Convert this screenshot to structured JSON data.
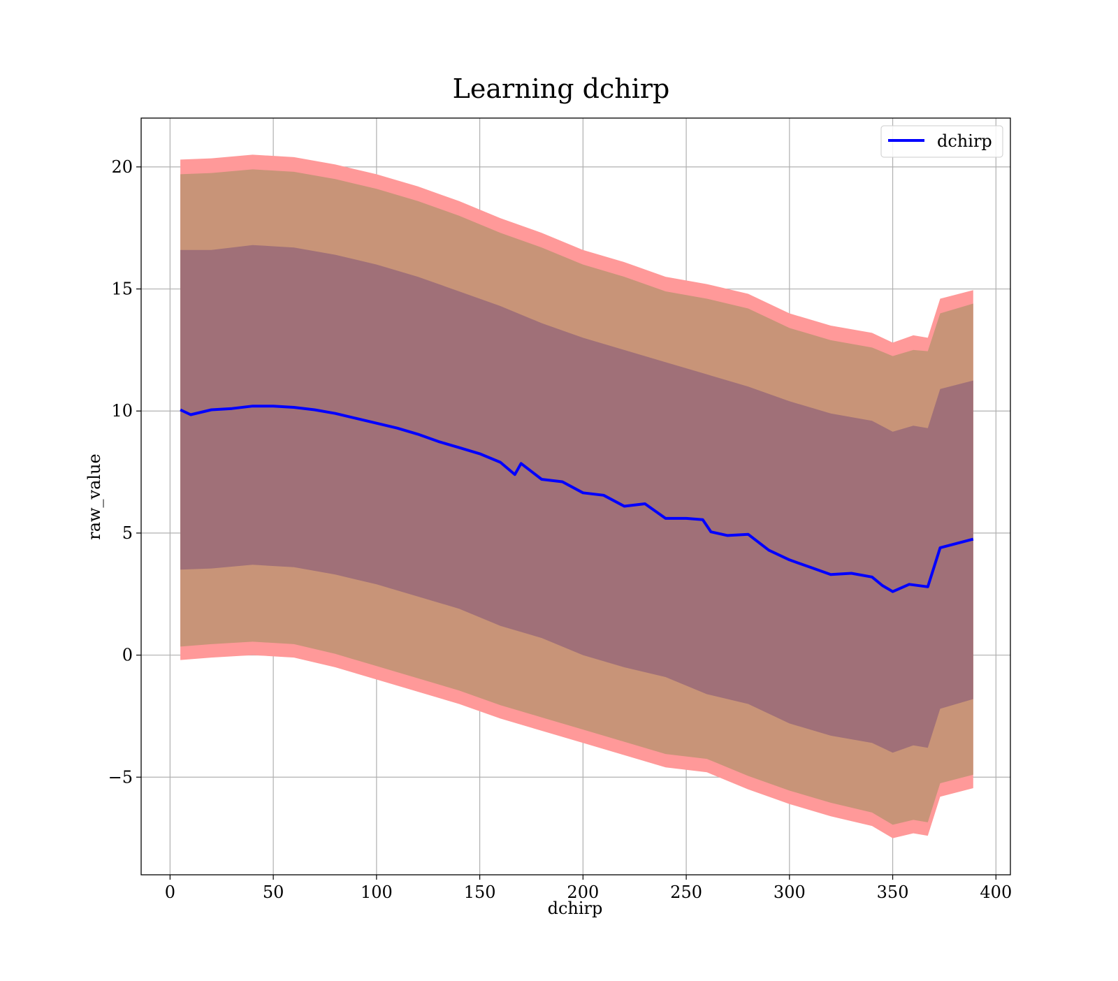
{
  "chart_data": {
    "type": "area",
    "title": "Learning dchirp",
    "xlabel": "dchirp",
    "ylabel": "raw_value",
    "xlim": [
      -14,
      407
    ],
    "ylim": [
      -9,
      22
    ],
    "xticks": [
      0,
      50,
      100,
      150,
      200,
      250,
      300,
      350,
      400
    ],
    "xtick_labels": [
      "0",
      "50",
      "100",
      "150",
      "200",
      "250",
      "300",
      "350",
      "400"
    ],
    "yticks": [
      -5,
      0,
      5,
      10,
      15,
      20
    ],
    "ytick_labels": [
      "−5",
      "0",
      "5",
      "10",
      "15",
      "20"
    ],
    "grid": true,
    "legend": {
      "position": "top-right",
      "entries": [
        "dchirp"
      ]
    },
    "colors": {
      "line": "#0000ff",
      "outer_band": "#ff9999",
      "middle_band": "#c89478",
      "inner_band": "#a07078",
      "grid": "#b0b0b0"
    },
    "series": [
      {
        "name": "dchirp",
        "x": [
          5,
          10,
          20,
          30,
          40,
          50,
          60,
          70,
          80,
          90,
          100,
          110,
          120,
          130,
          140,
          150,
          160,
          167,
          170,
          180,
          190,
          200,
          210,
          220,
          230,
          240,
          250,
          258,
          262,
          270,
          280,
          290,
          300,
          310,
          320,
          330,
          340,
          345,
          350,
          358,
          367,
          373,
          389
        ],
        "y": [
          10.05,
          9.85,
          10.05,
          10.1,
          10.2,
          10.2,
          10.15,
          10.05,
          9.9,
          9.7,
          9.5,
          9.3,
          9.05,
          8.75,
          8.5,
          8.25,
          7.9,
          7.4,
          7.85,
          7.2,
          7.1,
          6.65,
          6.55,
          6.1,
          6.2,
          5.6,
          5.6,
          5.55,
          5.05,
          4.9,
          4.95,
          4.3,
          3.9,
          3.6,
          3.3,
          3.35,
          3.2,
          2.85,
          2.6,
          2.9,
          2.8,
          4.4,
          4.75
        ]
      }
    ],
    "bands": [
      {
        "level": "outer",
        "x": [
          5,
          20,
          40,
          60,
          80,
          100,
          120,
          140,
          160,
          180,
          200,
          220,
          240,
          260,
          280,
          300,
          320,
          340,
          350,
          360,
          367,
          373,
          389
        ],
        "upper": [
          20.3,
          20.35,
          20.5,
          20.4,
          20.1,
          19.7,
          19.2,
          18.6,
          17.9,
          17.3,
          16.6,
          16.1,
          15.5,
          15.2,
          14.8,
          14.0,
          13.5,
          13.2,
          12.8,
          13.1,
          13.0,
          14.6,
          14.95
        ],
        "lower": [
          -0.2,
          -0.1,
          0.0,
          -0.1,
          -0.5,
          -1.0,
          -1.5,
          -2.0,
          -2.6,
          -3.1,
          -3.6,
          -4.1,
          -4.6,
          -4.8,
          -5.5,
          -6.1,
          -6.6,
          -7.0,
          -7.5,
          -7.3,
          -7.4,
          -5.8,
          -5.45
        ]
      },
      {
        "level": "middle",
        "x": [
          5,
          20,
          40,
          60,
          80,
          100,
          120,
          140,
          160,
          180,
          200,
          220,
          240,
          260,
          280,
          300,
          320,
          340,
          350,
          360,
          367,
          373,
          389
        ],
        "upper": [
          19.7,
          19.75,
          19.9,
          19.8,
          19.5,
          19.1,
          18.6,
          18.0,
          17.3,
          16.7,
          16.0,
          15.5,
          14.9,
          14.6,
          14.2,
          13.4,
          12.9,
          12.6,
          12.25,
          12.5,
          12.45,
          14.0,
          14.4
        ],
        "lower": [
          0.35,
          0.45,
          0.55,
          0.45,
          0.05,
          -0.45,
          -0.95,
          -1.45,
          -2.05,
          -2.55,
          -3.05,
          -3.55,
          -4.05,
          -4.25,
          -4.95,
          -5.55,
          -6.05,
          -6.45,
          -6.95,
          -6.75,
          -6.85,
          -5.25,
          -4.9
        ]
      },
      {
        "level": "inner",
        "x": [
          5,
          20,
          40,
          60,
          80,
          100,
          120,
          140,
          160,
          180,
          200,
          220,
          240,
          260,
          280,
          300,
          320,
          340,
          350,
          360,
          367,
          373,
          389
        ],
        "upper": [
          16.6,
          16.6,
          16.8,
          16.7,
          16.4,
          16.0,
          15.5,
          14.9,
          14.3,
          13.6,
          13.0,
          12.5,
          12.0,
          11.5,
          11.0,
          10.4,
          9.9,
          9.6,
          9.15,
          9.4,
          9.3,
          10.9,
          11.25
        ],
        "lower": [
          3.5,
          3.55,
          3.7,
          3.6,
          3.3,
          2.9,
          2.4,
          1.9,
          1.2,
          0.7,
          0.0,
          -0.5,
          -0.9,
          -1.6,
          -2.0,
          -2.8,
          -3.3,
          -3.6,
          -4.0,
          -3.7,
          -3.8,
          -2.2,
          -1.8
        ]
      }
    ]
  }
}
